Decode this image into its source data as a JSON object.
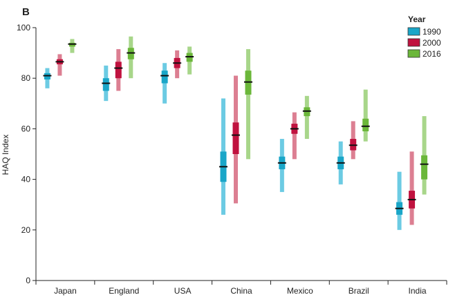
{
  "panel_label": "B",
  "legend": {
    "title": "Year",
    "items": [
      {
        "label": "1990",
        "color": "#1aa6c8"
      },
      {
        "label": "2000",
        "color": "#c0123f"
      },
      {
        "label": "2016",
        "color": "#6bb73a"
      }
    ]
  },
  "chart_data": {
    "type": "range",
    "ylabel": "HAQ Index",
    "xlabel": "",
    "ylim": [
      0,
      100
    ],
    "yticks": [
      0,
      20,
      40,
      60,
      80,
      100
    ],
    "grid": false,
    "legend_position": "top-right",
    "categories": [
      "Japan",
      "England",
      "USA",
      "China",
      "Mexico",
      "Brazil",
      "India"
    ],
    "series": [
      {
        "name": "1990",
        "color": "#1aa6c8",
        "light_color": "#6ccbe3",
        "values": [
          {
            "median": 81,
            "inner": [
              79.5,
              82
            ],
            "outer": [
              76,
              84
            ]
          },
          {
            "median": 78,
            "inner": [
              75,
              80
            ],
            "outer": [
              71,
              85
            ]
          },
          {
            "median": 81,
            "inner": [
              78,
              83
            ],
            "outer": [
              70,
              86
            ]
          },
          {
            "median": 45,
            "inner": [
              39,
              51
            ],
            "outer": [
              26,
              72
            ]
          },
          {
            "median": 46.5,
            "inner": [
              44,
              49
            ],
            "outer": [
              35,
              56
            ]
          },
          {
            "median": 46.5,
            "inner": [
              44,
              49
            ],
            "outer": [
              38,
              55
            ]
          },
          {
            "median": 28.5,
            "inner": [
              26,
              31
            ],
            "outer": [
              20,
              43
            ]
          }
        ]
      },
      {
        "name": "2000",
        "color": "#c0123f",
        "light_color": "#dc7f92",
        "values": [
          {
            "median": 86.5,
            "inner": [
              85.5,
              87.5
            ],
            "outer": [
              81,
              89.5
            ]
          },
          {
            "median": 84,
            "inner": [
              80,
              86.5
            ],
            "outer": [
              75,
              91.5
            ]
          },
          {
            "median": 86,
            "inner": [
              84,
              88
            ],
            "outer": [
              80,
              91
            ]
          },
          {
            "median": 57.5,
            "inner": [
              50,
              62.5
            ],
            "outer": [
              30.5,
              81
            ]
          },
          {
            "median": 60,
            "inner": [
              58,
              62
            ],
            "outer": [
              48,
              66.5
            ]
          },
          {
            "median": 53.5,
            "inner": [
              51.5,
              56
            ],
            "outer": [
              48,
              63
            ]
          },
          {
            "median": 32,
            "inner": [
              28.5,
              35.5
            ],
            "outer": [
              22,
              51
            ]
          }
        ]
      },
      {
        "name": "2016",
        "color": "#6bb73a",
        "light_color": "#a8d68a",
        "values": [
          {
            "median": 93.5,
            "inner": [
              92.5,
              94
            ],
            "outer": [
              90,
              95.5
            ]
          },
          {
            "median": 90,
            "inner": [
              87.5,
              92
            ],
            "outer": [
              80,
              96.5
            ]
          },
          {
            "median": 88.5,
            "inner": [
              86.5,
              90
            ],
            "outer": [
              81.5,
              92.5
            ]
          },
          {
            "median": 78.5,
            "inner": [
              73.5,
              83
            ],
            "outer": [
              48,
              91.5
            ]
          },
          {
            "median": 67,
            "inner": [
              65,
              68.5
            ],
            "outer": [
              56,
              73
            ]
          },
          {
            "median": 61,
            "inner": [
              59,
              64
            ],
            "outer": [
              55,
              75.5
            ]
          },
          {
            "median": 46,
            "inner": [
              40,
              49.5
            ],
            "outer": [
              34,
              65
            ]
          }
        ]
      }
    ]
  }
}
